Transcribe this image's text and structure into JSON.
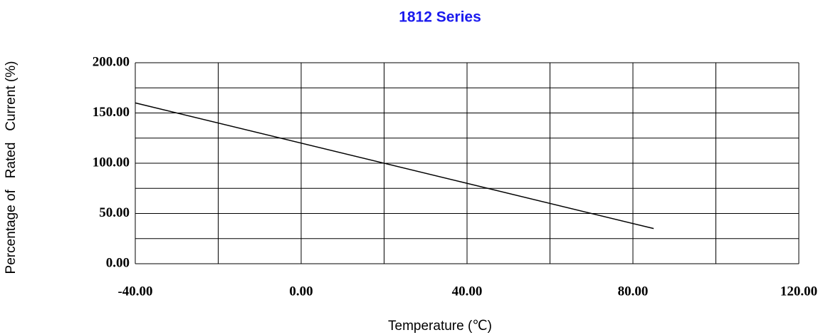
{
  "chart_data": {
    "type": "line",
    "title": "1812 Series",
    "x_label": "Temperature (℃)",
    "y_label": "Percentage of   Rated   Current (%)",
    "x": [
      -40,
      85
    ],
    "series": [
      {
        "color": "#000000",
        "values": [
          160,
          35
        ]
      }
    ],
    "xlim": [
      -40,
      120
    ],
    "xticks": [
      {
        "value": -40,
        "label": "-40.00"
      },
      {
        "value": 0,
        "label": "0.00"
      },
      {
        "value": 40,
        "label": "40.00"
      },
      {
        "value": 80,
        "label": "80.00"
      },
      {
        "value": 120,
        "label": "120.00"
      }
    ],
    "xminorticks": [
      -20,
      20,
      60,
      100
    ],
    "ylim": [
      0,
      200
    ],
    "yticks": [
      {
        "value": 0,
        "label": "0.00"
      },
      {
        "value": 50,
        "label": "50.00"
      },
      {
        "value": 100,
        "label": "100.00"
      },
      {
        "value": 150,
        "label": "150.00"
      },
      {
        "value": 200,
        "label": "200.00"
      }
    ],
    "yminorticks": [
      25,
      75,
      125,
      175
    ],
    "grid": true
  }
}
